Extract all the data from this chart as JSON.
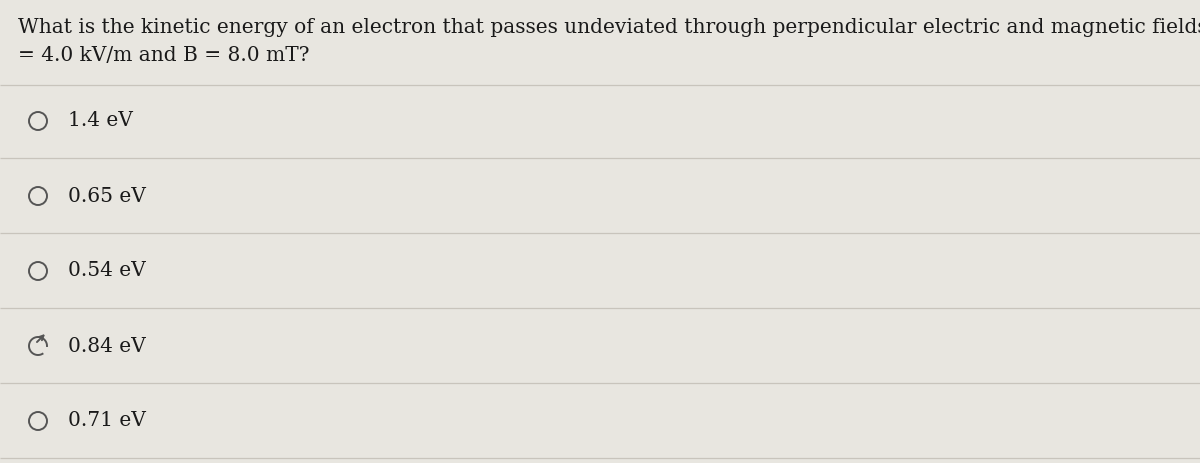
{
  "question_line1": "What is the kinetic energy of an electron that passes undeviated through perpendicular electric and magnetic fields if E",
  "question_line2": "= 4.0 kV/m and B = 8.0 mT?",
  "options": [
    {
      "label": "1.4 eV",
      "selected": false
    },
    {
      "label": "0.65 eV",
      "selected": false
    },
    {
      "label": "0.54 eV",
      "selected": false
    },
    {
      "label": "0.84 eV",
      "selected": true
    },
    {
      "label": "0.71 eV",
      "selected": false
    }
  ],
  "bg_color": "#e8e6e0",
  "text_color": "#1a1a1a",
  "line_color": "#c8c4bc",
  "circle_color": "#555555",
  "question_fontsize": 14.5,
  "option_fontsize": 14.5,
  "fig_width": 12.0,
  "fig_height": 4.63
}
